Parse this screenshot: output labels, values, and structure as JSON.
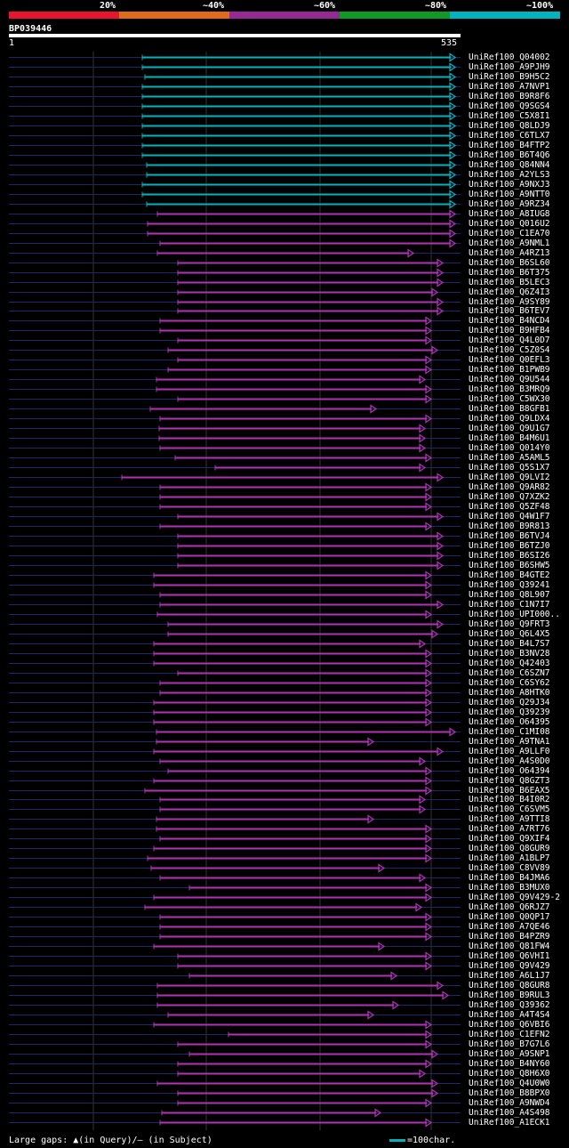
{
  "legend": [
    {
      "label": "20%",
      "color": "#e8152e"
    },
    {
      "label": "~40%",
      "color": "#e06b1a"
    },
    {
      "label": "~60%",
      "color": "#962a95"
    },
    {
      "label": "~80%",
      "color": "#0f9a25"
    },
    {
      "label": "~100%",
      "color": "#00b4bd"
    }
  ],
  "query": {
    "id": "BP039446",
    "start_label": "1",
    "end_label": "535",
    "length": 535
  },
  "colors": {
    "high": "#00b4bd",
    "mid": "#b033b5",
    "baseline": "#1b2a66",
    "grid": "#333333"
  },
  "footer": {
    "gaps_text": "Large gaps: ▲(in Query)/– (in Subject)",
    "scale_text": "=100char."
  },
  "hits": [
    {
      "name": "UniRef100_Q04002",
      "tier": "high"
    },
    {
      "name": "UniRef100_A9PJH9",
      "tier": "high"
    },
    {
      "name": "UniRef100_B9H5C2",
      "tier": "high"
    },
    {
      "name": "UniRef100_A7NVP1",
      "tier": "high"
    },
    {
      "name": "UniRef100_B9R8F6",
      "tier": "high"
    },
    {
      "name": "UniRef100_Q9SGS4",
      "tier": "high"
    },
    {
      "name": "UniRef100_C5X8I1",
      "tier": "high"
    },
    {
      "name": "UniRef100_Q8LDJ9",
      "tier": "high"
    },
    {
      "name": "UniRef100_C6TLX7",
      "tier": "high"
    },
    {
      "name": "UniRef100_B4FTP2",
      "tier": "high"
    },
    {
      "name": "UniRef100_B6T4Q6",
      "tier": "high"
    },
    {
      "name": "UniRef100_Q84NN4",
      "tier": "high"
    },
    {
      "name": "UniRef100_A2YLS3",
      "tier": "high"
    },
    {
      "name": "UniRef100_A9NXJ3",
      "tier": "high"
    },
    {
      "name": "UniRef100_A9NTT0",
      "tier": "high"
    },
    {
      "name": "UniRef100_A9RZ34",
      "tier": "high"
    },
    {
      "name": "UniRef100_A8IUG8",
      "tier": "mid"
    },
    {
      "name": "UniRef100_Q016U2",
      "tier": "mid"
    },
    {
      "name": "UniRef100_C1EA70",
      "tier": "mid"
    },
    {
      "name": "UniRef100_A9NML1",
      "tier": "mid"
    },
    {
      "name": "UniRef100_A4RZ13",
      "tier": "mid"
    },
    {
      "name": "UniRef100_B6SL60",
      "tier": "mid"
    },
    {
      "name": "UniRef100_B6T375",
      "tier": "mid"
    },
    {
      "name": "UniRef100_B5LEC3",
      "tier": "mid"
    },
    {
      "name": "UniRef100_Q6Z4I3",
      "tier": "mid"
    },
    {
      "name": "UniRef100_A9SY89",
      "tier": "mid"
    },
    {
      "name": "UniRef100_B6TEV7",
      "tier": "mid"
    },
    {
      "name": "UniRef100_B4NCD4",
      "tier": "mid"
    },
    {
      "name": "UniRef100_B9HFB4",
      "tier": "mid"
    },
    {
      "name": "UniRef100_Q4L0D7",
      "tier": "mid"
    },
    {
      "name": "UniRef100_C5Z0S4",
      "tier": "mid"
    },
    {
      "name": "UniRef100_Q0EFL3",
      "tier": "mid"
    },
    {
      "name": "UniRef100_B1PWB9",
      "tier": "mid"
    },
    {
      "name": "UniRef100_Q9U544",
      "tier": "mid"
    },
    {
      "name": "UniRef100_B3MRQ9",
      "tier": "mid"
    },
    {
      "name": "UniRef100_C5WX30",
      "tier": "mid"
    },
    {
      "name": "UniRef100_B8GFB1",
      "tier": "mid"
    },
    {
      "name": "UniRef100_Q9LDX4",
      "tier": "mid"
    },
    {
      "name": "UniRef100_Q9U1G7",
      "tier": "mid"
    },
    {
      "name": "UniRef100_B4M6U1",
      "tier": "mid"
    },
    {
      "name": "UniRef100_Q014Y0",
      "tier": "mid"
    },
    {
      "name": "UniRef100_A5AML5",
      "tier": "mid"
    },
    {
      "name": "UniRef100_Q5S1X7",
      "tier": "mid"
    },
    {
      "name": "UniRef100_Q9LVI2",
      "tier": "mid"
    },
    {
      "name": "UniRef100_Q9AR82",
      "tier": "mid"
    },
    {
      "name": "UniRef100_Q7XZK2",
      "tier": "mid"
    },
    {
      "name": "UniRef100_Q5ZF48",
      "tier": "mid"
    },
    {
      "name": "UniRef100_Q4W1F7",
      "tier": "mid"
    },
    {
      "name": "UniRef100_B9R813",
      "tier": "mid"
    },
    {
      "name": "UniRef100_B6TVJ4",
      "tier": "mid"
    },
    {
      "name": "UniRef100_B6TZJ0",
      "tier": "mid"
    },
    {
      "name": "UniRef100_B6SI26",
      "tier": "mid"
    },
    {
      "name": "UniRef100_B6SHW5",
      "tier": "mid"
    },
    {
      "name": "UniRef100_B4GTE2",
      "tier": "mid"
    },
    {
      "name": "UniRef100_Q39241",
      "tier": "mid"
    },
    {
      "name": "UniRef100_Q8L907",
      "tier": "mid"
    },
    {
      "name": "UniRef100_C1N7I7",
      "tier": "mid"
    },
    {
      "name": "UniRef100_UPI000..",
      "tier": "mid"
    },
    {
      "name": "UniRef100_Q9FRT3",
      "tier": "mid"
    },
    {
      "name": "UniRef100_Q6L4X5",
      "tier": "mid"
    },
    {
      "name": "UniRef100_B4L7S7",
      "tier": "mid"
    },
    {
      "name": "UniRef100_B3NV28",
      "tier": "mid"
    },
    {
      "name": "UniRef100_Q42403",
      "tier": "mid"
    },
    {
      "name": "UniRef100_C6SZN7",
      "tier": "mid"
    },
    {
      "name": "UniRef100_C6SY62",
      "tier": "mid"
    },
    {
      "name": "UniRef100_A8HTK0",
      "tier": "mid"
    },
    {
      "name": "UniRef100_Q29J34",
      "tier": "mid"
    },
    {
      "name": "UniRef100_Q39239",
      "tier": "mid"
    },
    {
      "name": "UniRef100_O64395",
      "tier": "mid"
    },
    {
      "name": "UniRef100_C1MI08",
      "tier": "mid"
    },
    {
      "name": "UniRef100_A9TNA1",
      "tier": "mid"
    },
    {
      "name": "UniRef100_A9LLF0",
      "tier": "mid"
    },
    {
      "name": "UniRef100_A4S0D0",
      "tier": "mid"
    },
    {
      "name": "UniRef100_O64394",
      "tier": "mid"
    },
    {
      "name": "UniRef100_Q8GZT3",
      "tier": "mid"
    },
    {
      "name": "UniRef100_B6EAX5",
      "tier": "mid"
    },
    {
      "name": "UniRef100_B4I0R2",
      "tier": "mid"
    },
    {
      "name": "UniRef100_C6SVM5",
      "tier": "mid"
    },
    {
      "name": "UniRef100_A9TTI8",
      "tier": "mid"
    },
    {
      "name": "UniRef100_A7RT76",
      "tier": "mid"
    },
    {
      "name": "UniRef100_Q9XIF4",
      "tier": "mid"
    },
    {
      "name": "UniRef100_Q8GUR9",
      "tier": "mid"
    },
    {
      "name": "UniRef100_A1BLP7",
      "tier": "mid"
    },
    {
      "name": "UniRef100_C8VV89",
      "tier": "mid"
    },
    {
      "name": "UniRef100_B4JMA6",
      "tier": "mid"
    },
    {
      "name": "UniRef100_B3MUX0",
      "tier": "mid"
    },
    {
      "name": "UniRef100_Q9V429-2",
      "tier": "mid"
    },
    {
      "name": "UniRef100_Q6RJZ7",
      "tier": "mid"
    },
    {
      "name": "UniRef100_Q0QP17",
      "tier": "mid"
    },
    {
      "name": "UniRef100_A7QE46",
      "tier": "mid"
    },
    {
      "name": "UniRef100_B4PZR9",
      "tier": "mid"
    },
    {
      "name": "UniRef100_Q81FW4",
      "tier": "mid"
    },
    {
      "name": "UniRef100_Q6VHI1",
      "tier": "mid"
    },
    {
      "name": "UniRef100_Q9V429",
      "tier": "mid"
    },
    {
      "name": "UniRef100_A6L1J7",
      "tier": "mid"
    },
    {
      "name": "UniRef100_Q8GUR8",
      "tier": "mid"
    },
    {
      "name": "UniRef100_B9RUL3",
      "tier": "mid"
    },
    {
      "name": "UniRef100_Q39362",
      "tier": "mid"
    },
    {
      "name": "UniRef100_A4T4S4",
      "tier": "mid"
    },
    {
      "name": "UniRef100_Q6VBI6",
      "tier": "mid"
    },
    {
      "name": "UniRef100_C1EFN2",
      "tier": "mid"
    },
    {
      "name": "UniRef100_B7G7L6",
      "tier": "mid"
    },
    {
      "name": "UniRef100_A9SNP1",
      "tier": "mid"
    },
    {
      "name": "UniRef100_B4NY60",
      "tier": "mid"
    },
    {
      "name": "UniRef100_Q8H6X0",
      "tier": "mid"
    },
    {
      "name": "UniRef100_Q4U0W0",
      "tier": "mid"
    },
    {
      "name": "UniRef100_B8BPX0",
      "tier": "mid"
    },
    {
      "name": "UniRef100_A9NWD4",
      "tier": "mid"
    },
    {
      "name": "UniRef100_A4S498",
      "tier": "mid"
    },
    {
      "name": "UniRef100_A1ECK1",
      "tier": "mid"
    }
  ]
}
